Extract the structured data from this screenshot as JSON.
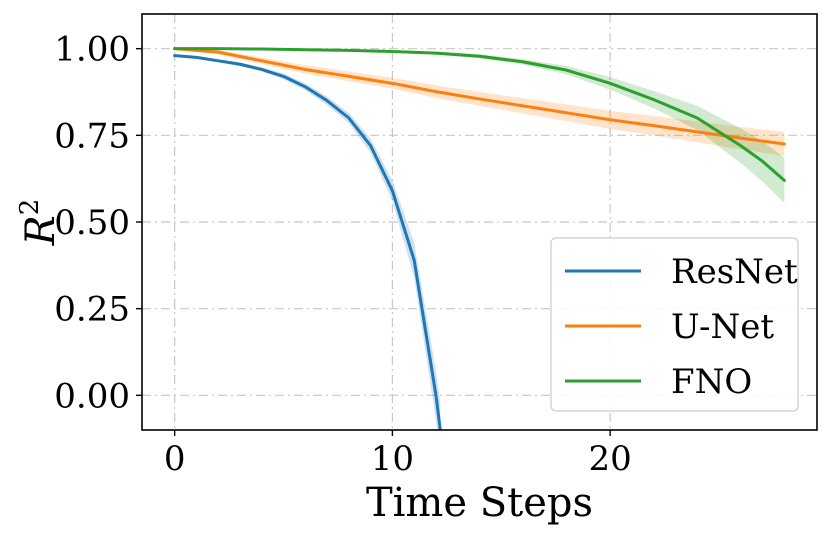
{
  "chart_data": {
    "type": "line",
    "xlabel": "Time Steps",
    "ylabel_base": "R",
    "ylabel_sup": "2",
    "xlim": [
      -1.5,
      29.5
    ],
    "ylim": [
      -0.1,
      1.1
    ],
    "xticks": [
      0,
      10,
      20
    ],
    "xtick_labels": [
      "0",
      "10",
      "20"
    ],
    "yticks": [
      0.0,
      0.25,
      0.5,
      0.75,
      1.0
    ],
    "ytick_labels": [
      "0.00",
      "0.25",
      "0.50",
      "0.75",
      "1.00"
    ],
    "grid": true,
    "legend_position": "lower right",
    "series": [
      {
        "name": "ResNet",
        "color": "#1f77b4",
        "x": [
          0,
          1,
          2,
          3,
          4,
          5,
          6,
          7,
          8,
          9,
          10,
          11,
          12,
          12.2
        ],
        "y": [
          0.98,
          0.975,
          0.965,
          0.955,
          0.94,
          0.92,
          0.89,
          0.85,
          0.8,
          0.72,
          0.59,
          0.39,
          0.0,
          -0.1
        ],
        "band": [
          0.002,
          0.003,
          0.004,
          0.005,
          0.006,
          0.008,
          0.01,
          0.012,
          0.015,
          0.02,
          0.03,
          0.05,
          0.07,
          0.08
        ]
      },
      {
        "name": "U-Net",
        "color": "#ff7f0e",
        "x": [
          0,
          2,
          4,
          6,
          8,
          10,
          12,
          14,
          16,
          18,
          20,
          22,
          24,
          26,
          28
        ],
        "y": [
          1.0,
          0.99,
          0.965,
          0.94,
          0.92,
          0.9,
          0.876,
          0.855,
          0.835,
          0.815,
          0.795,
          0.778,
          0.76,
          0.742,
          0.725
        ],
        "band": [
          0.003,
          0.006,
          0.009,
          0.012,
          0.014,
          0.016,
          0.018,
          0.02,
          0.022,
          0.024,
          0.026,
          0.028,
          0.03,
          0.032,
          0.035
        ]
      },
      {
        "name": "FNO",
        "color": "#2ca02c",
        "x": [
          0,
          2,
          4,
          6,
          8,
          10,
          12,
          14,
          16,
          18,
          20,
          22,
          24,
          26,
          27,
          28
        ],
        "y": [
          1.0,
          1.0,
          0.999,
          0.997,
          0.995,
          0.992,
          0.987,
          0.978,
          0.962,
          0.938,
          0.9,
          0.853,
          0.8,
          0.72,
          0.675,
          0.62
        ],
        "band": [
          0.001,
          0.001,
          0.001,
          0.002,
          0.002,
          0.003,
          0.004,
          0.006,
          0.008,
          0.012,
          0.018,
          0.025,
          0.035,
          0.05,
          0.058,
          0.065
        ]
      }
    ]
  }
}
